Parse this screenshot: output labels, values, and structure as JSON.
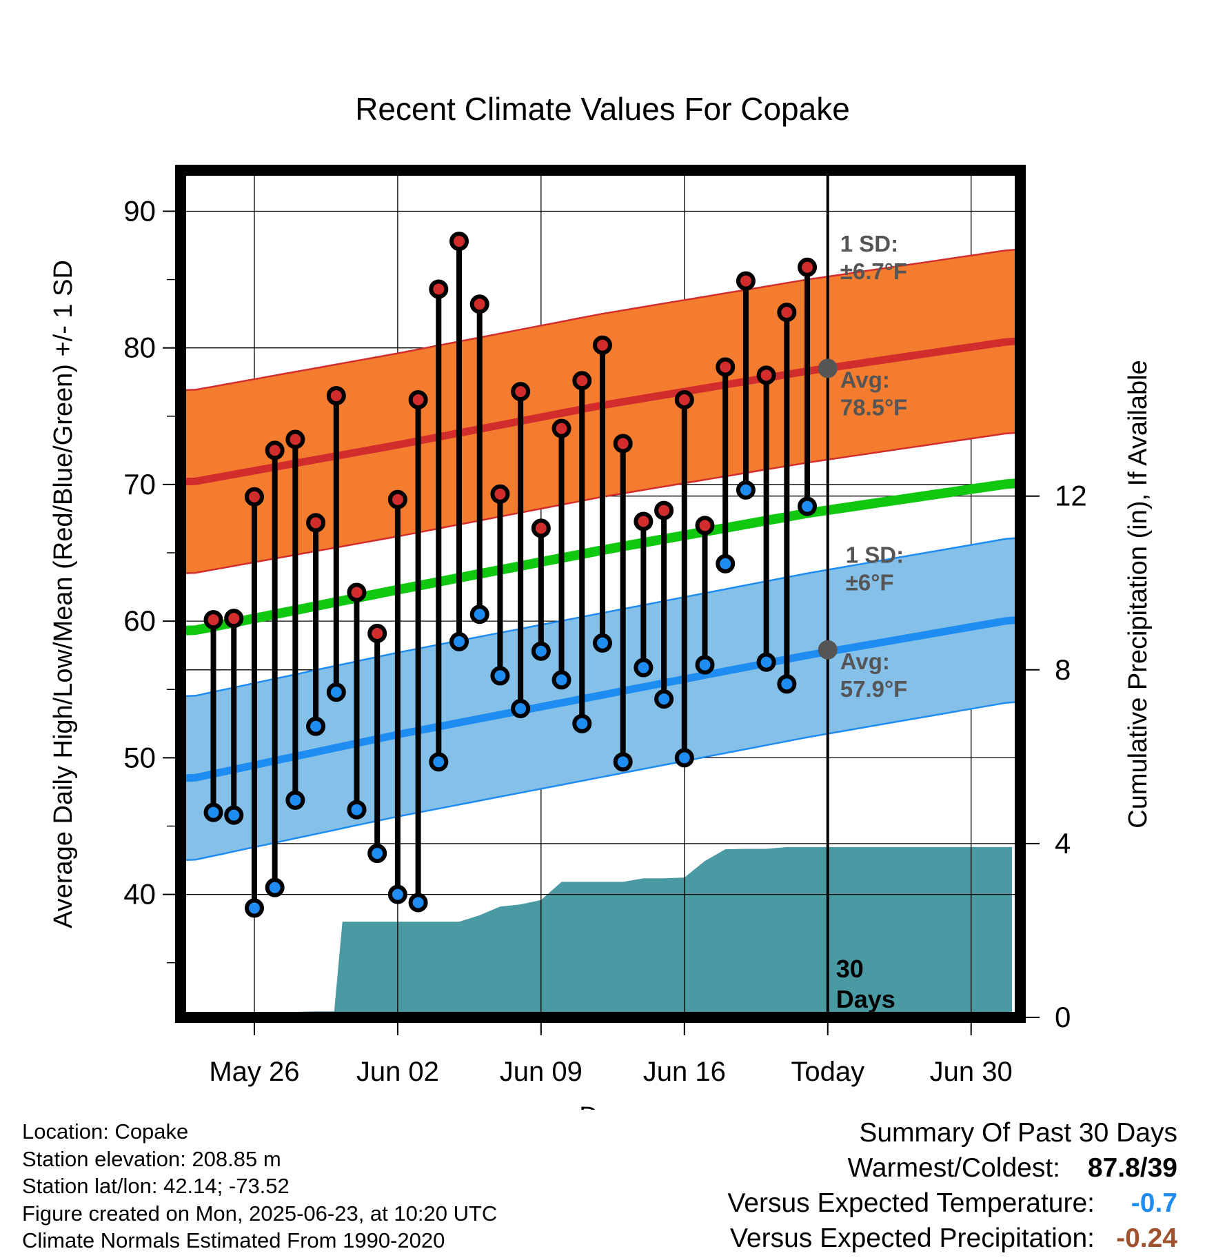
{
  "chart_data": {
    "type": "range-bar",
    "title": "Recent Climate Values For Copake",
    "xlabel": "Day",
    "ylabel_left": "Average Daily High/Low/Mean (Red/Blue/Green) +/- 1 SD",
    "ylabel_right": "Cumulative Precipitation (in), If Available",
    "x_ticks": [
      {
        "day": 3,
        "label": "May 26"
      },
      {
        "day": 10,
        "label": "Jun 02"
      },
      {
        "day": 17,
        "label": "Jun 09"
      },
      {
        "day": 24,
        "label": "Jun 16"
      },
      {
        "day": 31,
        "label": "Today"
      },
      {
        "day": 38,
        "label": "Jun 30"
      }
    ],
    "xlim": [
      -0.6,
      40.4
    ],
    "ylim_left": [
      31,
      93
    ],
    "yticks_left": [
      40,
      50,
      60,
      70,
      80,
      90
    ],
    "yticks_left_labels": [
      "40",
      "50",
      "60",
      "70",
      "80",
      "90"
    ],
    "ylim_right": [
      0,
      19.5
    ],
    "yticks_right": [
      0,
      4,
      8,
      12
    ],
    "yticks_right_labels": [
      "0",
      "4",
      "8",
      "12"
    ],
    "today_day": 31,
    "days": [
      {
        "day": 1,
        "high": 60.1,
        "low": 46.0
      },
      {
        "day": 2,
        "high": 60.2,
        "low": 45.8
      },
      {
        "day": 3,
        "high": 69.1,
        "low": 39.0
      },
      {
        "day": 4,
        "high": 72.5,
        "low": 40.5
      },
      {
        "day": 5,
        "high": 73.3,
        "low": 46.9
      },
      {
        "day": 6,
        "high": 67.2,
        "low": 52.3
      },
      {
        "day": 7,
        "high": 76.5,
        "low": 54.8
      },
      {
        "day": 8,
        "high": 62.1,
        "low": 46.2
      },
      {
        "day": 9,
        "high": 59.1,
        "low": 43.0
      },
      {
        "day": 10,
        "high": 68.9,
        "low": 40.0
      },
      {
        "day": 11,
        "high": 76.2,
        "low": 39.4
      },
      {
        "day": 12,
        "high": 84.3,
        "low": 49.7
      },
      {
        "day": 13,
        "high": 87.8,
        "low": 58.5
      },
      {
        "day": 14,
        "high": 83.2,
        "low": 60.5
      },
      {
        "day": 15,
        "high": 69.3,
        "low": 56.0
      },
      {
        "day": 16,
        "high": 76.8,
        "low": 53.6
      },
      {
        "day": 17,
        "high": 66.8,
        "low": 57.8
      },
      {
        "day": 18,
        "high": 74.1,
        "low": 55.7
      },
      {
        "day": 19,
        "high": 77.6,
        "low": 52.5
      },
      {
        "day": 20,
        "high": 80.2,
        "low": 58.4
      },
      {
        "day": 21,
        "high": 73.0,
        "low": 49.7
      },
      {
        "day": 22,
        "high": 67.3,
        "low": 56.6
      },
      {
        "day": 23,
        "high": 68.1,
        "low": 54.3
      },
      {
        "day": 24,
        "high": 76.2,
        "low": 50.0
      },
      {
        "day": 25,
        "high": 67.0,
        "low": 56.8
      },
      {
        "day": 26,
        "high": 78.6,
        "low": 64.2
      },
      {
        "day": 27,
        "high": 84.9,
        "low": 69.6
      },
      {
        "day": 28,
        "high": 78.0,
        "low": 57.0
      },
      {
        "day": 29,
        "high": 82.6,
        "low": 55.4
      },
      {
        "day": 30,
        "high": 85.9,
        "low": 68.4
      }
    ],
    "normals": {
      "days": [
        0,
        10,
        20,
        30,
        40
      ],
      "avg_high": [
        70.2,
        72.9,
        75.8,
        78.3,
        80.5
      ],
      "avg_low": [
        48.5,
        51.7,
        54.6,
        57.5,
        60.1
      ],
      "avg_mean": [
        59.3,
        62.3,
        65.2,
        67.9,
        70.1
      ],
      "high_sd": 6.7,
      "low_sd": 6.0
    },
    "precipitation_cumulative": {
      "days": [
        0,
        0.6,
        1.8,
        3,
        4.5,
        6,
        6.9,
        7.3,
        8,
        9,
        10,
        11,
        12,
        13,
        14,
        15,
        16,
        17,
        18,
        19,
        20,
        21,
        22,
        23,
        24,
        25,
        26,
        27,
        28,
        29,
        30,
        31,
        35,
        40
      ],
      "inches": [
        0,
        0.05,
        0.12,
        0.12,
        0.12,
        0.14,
        0.14,
        2.2,
        2.2,
        2.2,
        2.2,
        2.2,
        2.2,
        2.2,
        2.35,
        2.55,
        2.6,
        2.7,
        3.12,
        3.12,
        3.12,
        3.12,
        3.2,
        3.2,
        3.22,
        3.6,
        3.87,
        3.88,
        3.88,
        3.92,
        3.92,
        3.92,
        3.92,
        3.92
      ]
    },
    "annotations": {
      "high_sd_line1": "1 SD:",
      "high_sd_line2": "±6.7°F",
      "high_avg_line1": "Avg:",
      "high_avg_line2": "78.5°F",
      "low_sd_line1": "1 SD:",
      "low_sd_line2": "±6°F",
      "low_avg_line1": "Avg:",
      "low_avg_line2": "57.9°F",
      "today_high_avg": 78.5,
      "today_low_avg": 57.9,
      "window_line1": "30",
      "window_line2": "Days"
    },
    "colors": {
      "high_band": "#f47c2f",
      "high_line": "#d22d2d",
      "low_band": "#84c0e8",
      "low_line": "#1e8cf0",
      "mean_line": "#10c810",
      "precip": "#4a9aa4",
      "high_dot": "#d22d2d",
      "low_dot": "#1e8cf0",
      "annotation": "#555555"
    }
  },
  "footer": {
    "location": "Location: Copake",
    "elevation": "Station elevation: 208.85 m",
    "latlon": "Station lat/lon: 42.14; -73.52",
    "created": "Figure created on Mon, 2025-06-23, at 10:20 UTC",
    "normals": "Climate Normals Estimated From 1990-2020"
  },
  "summary": {
    "title": "Summary Of Past 30 Days",
    "warm_cold_label": "Warmest/Coldest:",
    "warm_cold_value": "87.8/39",
    "temp_label": "Versus Expected Temperature:",
    "temp_value": "-0.7",
    "temp_color": "#1e8cf0",
    "precip_label": "Versus Expected Precipitation:",
    "precip_value": "-0.24",
    "precip_color": "#a0522d"
  }
}
